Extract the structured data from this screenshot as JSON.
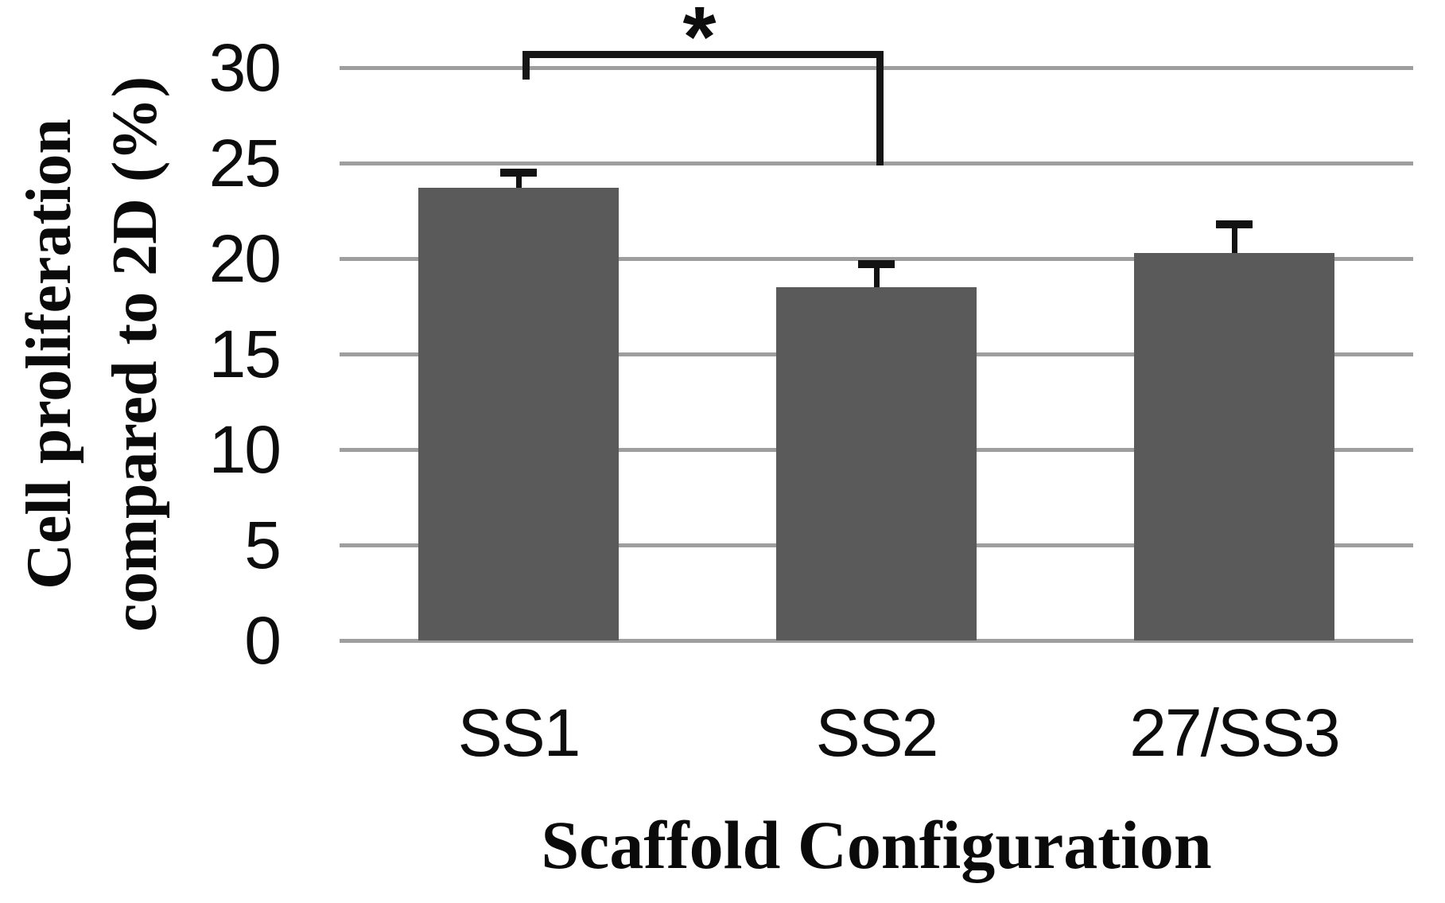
{
  "figure": {
    "background": "#ffffff"
  },
  "chart_data": {
    "type": "bar",
    "title": "",
    "xlabel": "Scaffold Configuration",
    "ylabel": "Cell proliferation compared to 2D (%)",
    "ylabel_lines": [
      "Cell proliferation",
      "compared to 2D (%)"
    ],
    "categories": [
      "SS1",
      "SS2",
      "27/SS3"
    ],
    "values": [
      23.7,
      18.5,
      20.3
    ],
    "error_plus": [
      0.8,
      1.2,
      1.5
    ],
    "ylim": [
      0,
      30
    ],
    "yticks": [
      0,
      5,
      10,
      15,
      20,
      25,
      30
    ],
    "grid": true,
    "legend": null,
    "bar_color": "#5a5a5a",
    "gridline_color": "#9e9e9e",
    "error_color": "#121212",
    "text_color": "#0d0d0d",
    "significance": {
      "from": "SS1",
      "to": "SS2",
      "label": "*"
    }
  }
}
